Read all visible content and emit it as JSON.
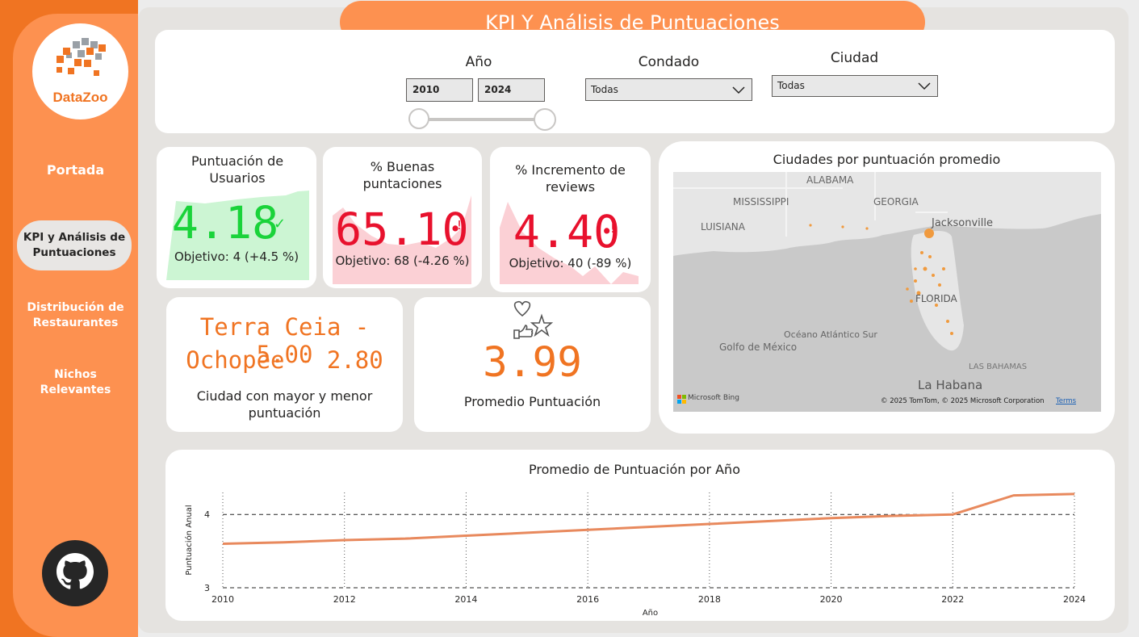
{
  "sidebar": {
    "logo_text": "DataZoo",
    "items": [
      {
        "label": "Portada"
      },
      {
        "label": "KPI y Análisis de Puntuaciones"
      },
      {
        "label": "Distribución de Restaurantes"
      },
      {
        "label": "Nichos Relevantes"
      }
    ]
  },
  "header": {
    "title": "KPI Y Análisis de Puntuaciones"
  },
  "filters": {
    "year": {
      "label": "Año",
      "from": "2010",
      "to": "2024"
    },
    "county": {
      "label": "Condado",
      "value": "Todas"
    },
    "city": {
      "label": "Ciudad",
      "value": "Todas"
    }
  },
  "kpis": [
    {
      "title": "Puntuación de Usuarios",
      "value": "4.18",
      "icon": "✓",
      "objective": "Objetivo: 4 (+4.5 %)",
      "color": "#1ad33a",
      "area": "#ccf5d3"
    },
    {
      "title": "% Buenas puntaciones",
      "value": "65.10",
      "icon": "!",
      "objective": "Objetivo: 68 (-4.26 %)",
      "color": "#e8112d",
      "area": "#fbd0d5"
    },
    {
      "title": "% Incremento de reviews",
      "value": "4.40",
      "icon": "!",
      "objective": "Objetivo: 40 (-89 %)",
      "color": "#e8112d",
      "area": "#fbd0d5"
    }
  ],
  "cities": {
    "max": "Terra Ceia - 5.00",
    "min": "Ochopee - 2.80",
    "label": "Ciudad con mayor y menor puntuación"
  },
  "average": {
    "value": "3.99",
    "label": "Promedio Puntuación"
  },
  "map": {
    "title": "Ciudades por puntuación promedio",
    "labels": [
      "ALABAMA",
      "MISSISSIPPI",
      "GEORGIA",
      "LUISIANA",
      "Jacksonville",
      "FLORIDA",
      "Océano Atlántico Sur",
      "Golfo de México",
      "LAS BAHAMAS",
      "La Habana"
    ],
    "brand": "Microsoft Bing",
    "copyright": "© 2025 TomTom, © 2025 Microsoft Corporation",
    "terms": "Terms"
  },
  "accent": "#f07422",
  "chart_data": {
    "type": "line",
    "title": "Promedio de Puntuación por Año",
    "xlabel": "Año",
    "ylabel": "Puntuación Anual",
    "x": [
      2010,
      2011,
      2012,
      2013,
      2014,
      2015,
      2016,
      2017,
      2018,
      2019,
      2020,
      2021,
      2022,
      2023,
      2024
    ],
    "values": [
      3.6,
      3.62,
      3.65,
      3.67,
      3.71,
      3.75,
      3.79,
      3.83,
      3.87,
      3.91,
      3.95,
      3.98,
      4.0,
      4.26,
      4.28
    ],
    "x_ticks": [
      "2010",
      "2012",
      "2014",
      "2016",
      "2018",
      "2020",
      "2022",
      "2024"
    ],
    "y_ticks": [
      "3",
      "4"
    ],
    "xlim": [
      2010,
      2024
    ],
    "ylim": [
      3,
      4.3
    ],
    "color": "#e8895d",
    "grid": true
  }
}
